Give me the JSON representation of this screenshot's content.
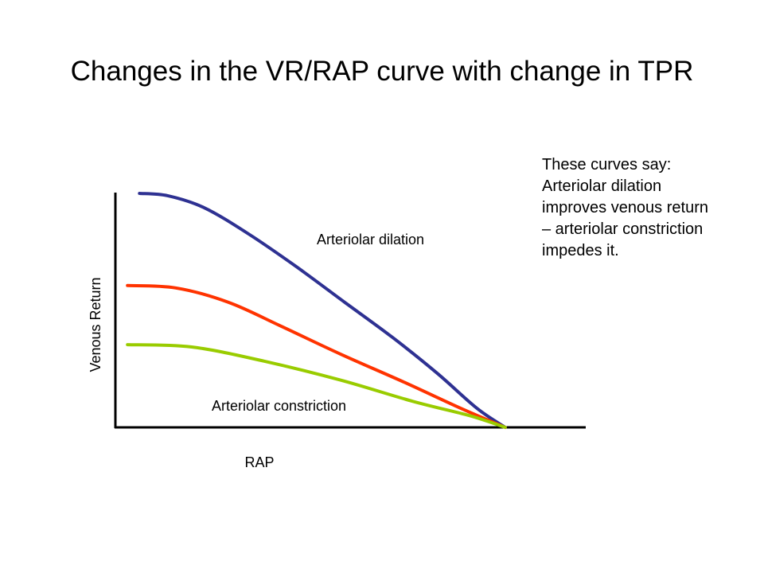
{
  "slide": {
    "title": "Changes in the VR/RAP curve with change in TPR",
    "note": "These curves say: Arteriolar dilation improves venous return – arteriolar constriction impedes it."
  },
  "chart_data": {
    "type": "line",
    "title": "",
    "xlabel": "RAP",
    "ylabel": "Venous Return",
    "xlim": [
      0,
      1
    ],
    "ylim": [
      0,
      1
    ],
    "grid": false,
    "legend": "none (curves labelled directly)",
    "ticks": false,
    "series": [
      {
        "name": "Arteriolar dilation",
        "color": "#2e3192",
        "x": [
          0.06,
          0.13,
          0.22,
          0.33,
          0.45,
          0.57,
          0.69,
          0.8,
          0.9,
          0.97
        ],
        "y": [
          0.99,
          0.98,
          0.93,
          0.82,
          0.68,
          0.53,
          0.38,
          0.23,
          0.08,
          0.0
        ]
      },
      {
        "name": "",
        "color": "#ff3300",
        "x": [
          0.03,
          0.15,
          0.28,
          0.41,
          0.56,
          0.72,
          0.86,
          0.97
        ],
        "y": [
          0.6,
          0.59,
          0.53,
          0.43,
          0.31,
          0.19,
          0.08,
          0.0
        ]
      },
      {
        "name": "Arteriolar constriction",
        "color": "#99cc00",
        "x": [
          0.03,
          0.19,
          0.37,
          0.56,
          0.74,
          0.88,
          0.97
        ],
        "y": [
          0.35,
          0.34,
          0.28,
          0.2,
          0.11,
          0.05,
          0.0
        ]
      }
    ]
  }
}
